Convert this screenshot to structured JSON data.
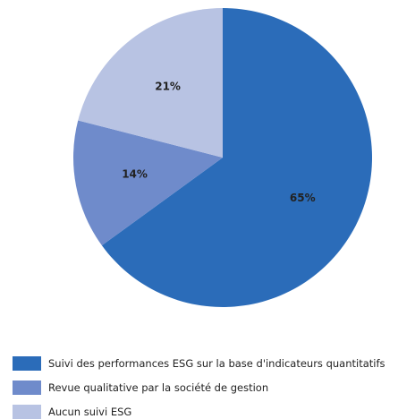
{
  "chart_data": {
    "type": "pie",
    "categories": [
      "Suivi des performances ESG sur la base d'indicateurs quantitatifs",
      "Revue qualitative par la société de gestion",
      "Aucun suivi ESG"
    ],
    "values": [
      65,
      14,
      21
    ],
    "value_labels": [
      "65%",
      "14%",
      "21%"
    ],
    "colors": [
      "#2b6cb9",
      "#6f8bcb",
      "#b8c3e3"
    ],
    "legend": "bottom"
  }
}
